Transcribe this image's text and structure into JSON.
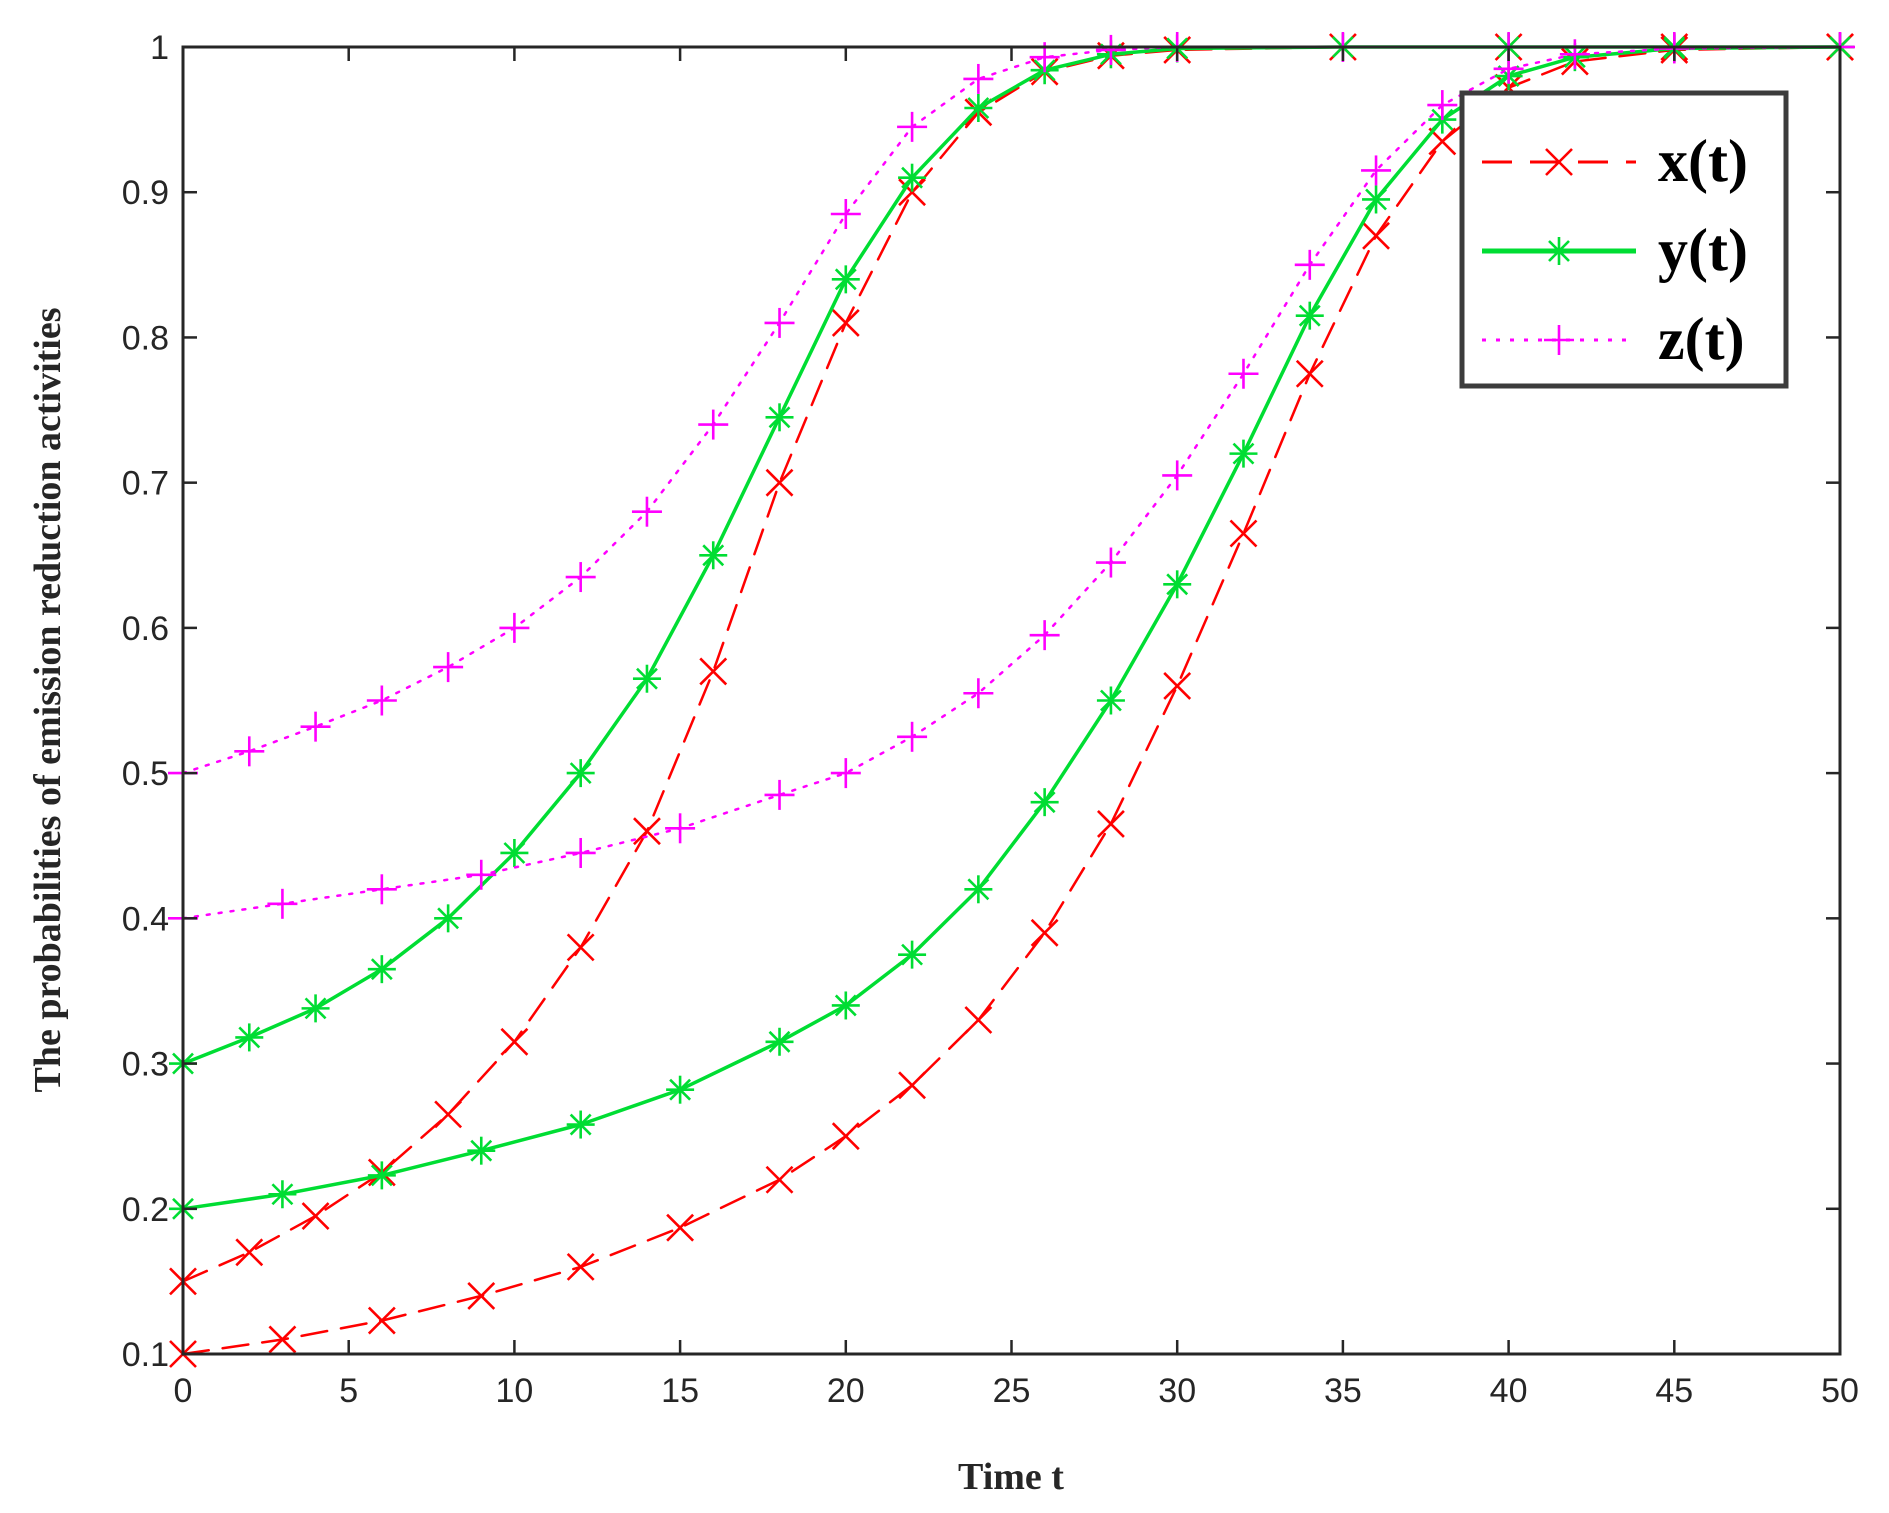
{
  "chart_data": {
    "type": "line",
    "title": "",
    "xlabel": "Time t",
    "ylabel": "The probabilities of emission reduction activities",
    "xlim": [
      0,
      50
    ],
    "ylim": [
      0.1,
      1
    ],
    "xticks": [
      "0",
      "5",
      "10",
      "15",
      "20",
      "25",
      "30",
      "35",
      "40",
      "45",
      "50"
    ],
    "yticks": [
      "0.1",
      "0.2",
      "0.3",
      "0.4",
      "0.5",
      "0.6",
      "0.7",
      "0.8",
      "0.9",
      "1"
    ],
    "grid": false,
    "legend_position": "top-right",
    "legend": [
      "x(t)",
      "y(t)",
      "z(t)"
    ],
    "series": [
      {
        "name": "x(t)",
        "run": "initial (0.15, 0.3, 0.5)",
        "color": "#ff0000",
        "line_style": "dashed",
        "marker": "x",
        "x": [
          0,
          2,
          4,
          6,
          8,
          10,
          12,
          14,
          16,
          18,
          20,
          22,
          24,
          26,
          28,
          30,
          35,
          40,
          45,
          50
        ],
        "y": [
          0.15,
          0.17,
          0.195,
          0.225,
          0.265,
          0.315,
          0.38,
          0.46,
          0.57,
          0.7,
          0.81,
          0.9,
          0.955,
          0.983,
          0.994,
          0.998,
          1.0,
          1.0,
          1.0,
          1.0
        ]
      },
      {
        "name": "y(t)",
        "run": "initial (0.15, 0.3, 0.5)",
        "color": "#00dd33",
        "line_style": "solid",
        "marker": "*",
        "x": [
          0,
          2,
          4,
          6,
          8,
          10,
          12,
          14,
          16,
          18,
          20,
          22,
          24,
          26,
          28,
          30,
          35,
          40,
          45,
          50
        ],
        "y": [
          0.3,
          0.318,
          0.338,
          0.365,
          0.4,
          0.445,
          0.5,
          0.565,
          0.65,
          0.745,
          0.84,
          0.91,
          0.958,
          0.984,
          0.995,
          0.999,
          1.0,
          1.0,
          1.0,
          1.0
        ]
      },
      {
        "name": "z(t)",
        "run": "initial (0.15, 0.3, 0.5)",
        "color": "#ff00ff",
        "line_style": "dotted",
        "marker": "+",
        "x": [
          0,
          2,
          4,
          6,
          8,
          10,
          12,
          14,
          16,
          18,
          20,
          22,
          24,
          26,
          28,
          30,
          35,
          40,
          45,
          50
        ],
        "y": [
          0.5,
          0.515,
          0.532,
          0.55,
          0.573,
          0.6,
          0.635,
          0.68,
          0.74,
          0.81,
          0.885,
          0.945,
          0.978,
          0.993,
          0.998,
          1.0,
          1.0,
          1.0,
          1.0,
          1.0
        ]
      },
      {
        "name": "x(t)",
        "run": "initial (0.1, 0.2, 0.4)",
        "color": "#ff0000",
        "line_style": "dashed",
        "marker": "x",
        "x": [
          0,
          3,
          6,
          9,
          12,
          15,
          18,
          20,
          22,
          24,
          26,
          28,
          30,
          32,
          34,
          36,
          38,
          40,
          42,
          45,
          50
        ],
        "y": [
          0.1,
          0.11,
          0.123,
          0.14,
          0.16,
          0.187,
          0.22,
          0.25,
          0.285,
          0.33,
          0.39,
          0.465,
          0.56,
          0.665,
          0.775,
          0.87,
          0.935,
          0.972,
          0.99,
          0.998,
          1.0
        ]
      },
      {
        "name": "y(t)",
        "run": "initial (0.1, 0.2, 0.4)",
        "color": "#00dd33",
        "line_style": "solid",
        "marker": "*",
        "x": [
          0,
          3,
          6,
          9,
          12,
          15,
          18,
          20,
          22,
          24,
          26,
          28,
          30,
          32,
          34,
          36,
          38,
          40,
          42,
          45,
          50
        ],
        "y": [
          0.2,
          0.21,
          0.223,
          0.24,
          0.258,
          0.282,
          0.315,
          0.34,
          0.375,
          0.42,
          0.48,
          0.55,
          0.63,
          0.72,
          0.815,
          0.895,
          0.95,
          0.98,
          0.993,
          0.999,
          1.0
        ]
      },
      {
        "name": "z(t)",
        "run": "initial (0.1, 0.2, 0.4)",
        "color": "#ff00ff",
        "line_style": "dotted",
        "marker": "+",
        "x": [
          0,
          3,
          6,
          9,
          12,
          15,
          18,
          20,
          22,
          24,
          26,
          28,
          30,
          32,
          34,
          36,
          38,
          40,
          42,
          45,
          50
        ],
        "y": [
          0.4,
          0.41,
          0.42,
          0.43,
          0.445,
          0.462,
          0.485,
          0.5,
          0.525,
          0.555,
          0.595,
          0.645,
          0.705,
          0.775,
          0.85,
          0.915,
          0.96,
          0.985,
          0.995,
          0.999,
          1.0
        ]
      }
    ]
  }
}
